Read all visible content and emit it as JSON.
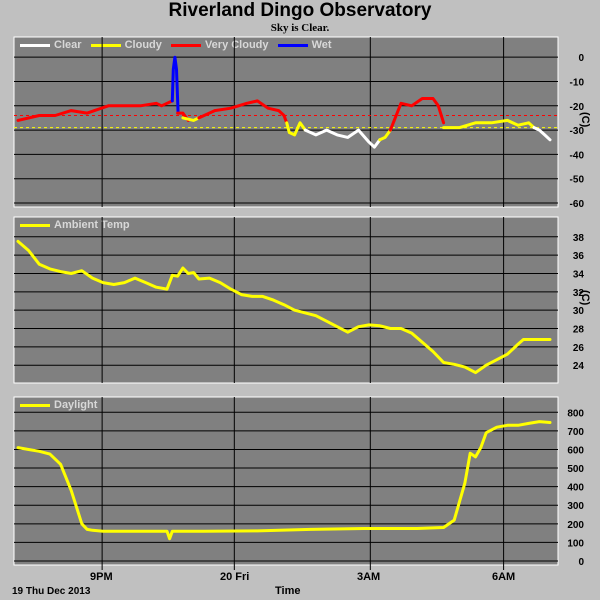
{
  "title": "Riverland Dingo Observatory",
  "subtitle": "Sky is Clear.",
  "date_label": "19 Thu Dec 2013",
  "xaxis_label": "Time",
  "xticks": [
    "9PM",
    "20 Fri",
    "3AM",
    "6AM"
  ],
  "colors": {
    "background": "#c0c0c0",
    "panel": "#808080",
    "clear": "#ffffff",
    "cloudy": "#ffff00",
    "very_cloudy": "#ff0000",
    "wet": "#0000ff",
    "grid": "#000000"
  },
  "chart_data": [
    {
      "type": "line",
      "name": "cloud",
      "legend": [
        "Clear",
        "Cloudy",
        "Very Cloudy",
        "Wet"
      ],
      "unit": "(C)",
      "ylim": [
        -60,
        5
      ],
      "yticks": [
        "0",
        "-10",
        "-20",
        "-30",
        "-40",
        "-50",
        "-60"
      ],
      "xlim": [
        0,
        1
      ],
      "threshold_lines": [
        -24,
        -29
      ],
      "series": [
        {
          "name": "Very Cloudy",
          "color": "very_cloudy",
          "x": [
            0.0,
            0.04,
            0.07,
            0.1,
            0.13,
            0.17,
            0.2,
            0.23,
            0.26,
            0.27,
            0.28,
            0.29
          ],
          "y": [
            -26,
            -24,
            -24,
            -22,
            -23,
            -20,
            -20,
            -20,
            -19,
            -20,
            -19,
            -18
          ]
        },
        {
          "name": "Wet",
          "color": "wet",
          "x": [
            0.29,
            0.292,
            0.295,
            0.298,
            0.301
          ],
          "y": [
            -18,
            -5,
            0,
            -5,
            -23
          ]
        },
        {
          "name": "Very Cloudy",
          "color": "very_cloudy",
          "x": [
            0.3,
            0.31,
            0.32
          ],
          "y": [
            -23,
            -23,
            -26
          ]
        },
        {
          "name": "Cloudy",
          "color": "cloudy",
          "x": [
            0.31,
            0.33,
            0.34
          ],
          "y": [
            -25,
            -26,
            -25
          ]
        },
        {
          "name": "Very Cloudy",
          "color": "very_cloudy",
          "x": [
            0.34,
            0.37,
            0.4,
            0.43,
            0.45,
            0.47,
            0.49,
            0.5,
            0.505
          ],
          "y": [
            -25,
            -22,
            -21,
            -19,
            -18,
            -21,
            -22,
            -24,
            -27
          ]
        },
        {
          "name": "Cloudy",
          "color": "cloudy",
          "x": [
            0.505,
            0.51,
            0.52,
            0.53,
            0.54
          ],
          "y": [
            -27,
            -31,
            -32,
            -27,
            -30
          ]
        },
        {
          "name": "Clear",
          "color": "clear",
          "x": [
            0.54,
            0.56,
            0.58,
            0.6,
            0.62,
            0.64,
            0.66,
            0.67,
            0.68
          ],
          "y": [
            -30,
            -32,
            -30,
            -32,
            -33,
            -30,
            -35,
            -37,
            -34
          ]
        },
        {
          "name": "Cloudy",
          "color": "cloudy",
          "x": [
            0.68,
            0.69,
            0.7
          ],
          "y": [
            -34,
            -33,
            -30
          ]
        },
        {
          "name": "Very Cloudy",
          "color": "very_cloudy",
          "x": [
            0.7,
            0.72,
            0.74,
            0.76,
            0.78,
            0.79,
            0.8
          ],
          "y": [
            -30,
            -19,
            -20,
            -17,
            -17,
            -20,
            -27
          ]
        },
        {
          "name": "Cloudy",
          "color": "cloudy",
          "x": [
            0.8,
            0.83,
            0.86,
            0.89,
            0.92,
            0.94,
            0.96,
            0.97
          ],
          "y": [
            -29,
            -29,
            -27,
            -27,
            -26,
            -28,
            -27,
            -29
          ]
        },
        {
          "name": "Clear",
          "color": "clear",
          "x": [
            0.97,
            0.98,
            0.99,
            1.0
          ],
          "y": [
            -29,
            -30,
            -32,
            -34
          ]
        }
      ]
    },
    {
      "type": "line",
      "name": "ambient",
      "legend": [
        "Ambient Temp"
      ],
      "unit": "(C)",
      "ylim": [
        22.5,
        39.5
      ],
      "yticks": [
        "38",
        "36",
        "34",
        "32",
        "30",
        "28",
        "26",
        "24"
      ],
      "xlim": [
        0,
        1
      ],
      "series": [
        {
          "name": "Ambient Temp",
          "color": "cloudy",
          "x": [
            0.0,
            0.02,
            0.04,
            0.06,
            0.08,
            0.1,
            0.12,
            0.14,
            0.16,
            0.18,
            0.2,
            0.22,
            0.24,
            0.26,
            0.28,
            0.29,
            0.3,
            0.31,
            0.32,
            0.33,
            0.34,
            0.36,
            0.38,
            0.4,
            0.42,
            0.44,
            0.46,
            0.48,
            0.5,
            0.52,
            0.54,
            0.56,
            0.58,
            0.6,
            0.62,
            0.64,
            0.66,
            0.68,
            0.7,
            0.72,
            0.74,
            0.76,
            0.78,
            0.8,
            0.82,
            0.84,
            0.86,
            0.88,
            0.9,
            0.92,
            0.94,
            0.95,
            0.96,
            0.98,
            1.0
          ],
          "y": [
            37.5,
            36.5,
            35.0,
            34.5,
            34.2,
            34.0,
            34.3,
            33.5,
            33.0,
            32.8,
            33.0,
            33.5,
            33.0,
            32.5,
            32.3,
            33.8,
            33.7,
            34.6,
            34.0,
            34.1,
            33.4,
            33.5,
            33.0,
            32.3,
            31.7,
            31.5,
            31.5,
            31.1,
            30.6,
            30.0,
            29.7,
            29.4,
            28.8,
            28.2,
            27.6,
            28.2,
            28.4,
            28.3,
            28.0,
            28.0,
            27.5,
            26.5,
            25.5,
            24.3,
            24.1,
            23.8,
            23.2,
            24.0,
            24.6,
            25.2,
            26.3,
            26.8,
            26.8,
            26.8,
            26.8
          ]
        }
      ]
    },
    {
      "type": "line",
      "name": "daylight",
      "legend": [
        "Daylight"
      ],
      "unit": "",
      "ylim": [
        0,
        850
      ],
      "yticks": [
        "800",
        "700",
        "600",
        "500",
        "400",
        "300",
        "200",
        "100",
        "0"
      ],
      "xlim": [
        0,
        1
      ],
      "series": [
        {
          "name": "Daylight",
          "color": "cloudy",
          "x": [
            0.0,
            0.02,
            0.04,
            0.06,
            0.08,
            0.1,
            0.12,
            0.13,
            0.14,
            0.16,
            0.2,
            0.25,
            0.28,
            0.285,
            0.29,
            0.35,
            0.45,
            0.55,
            0.65,
            0.75,
            0.8,
            0.82,
            0.84,
            0.85,
            0.86,
            0.87,
            0.88,
            0.9,
            0.92,
            0.94,
            0.96,
            0.98,
            1.0
          ],
          "y": [
            610,
            600,
            590,
            575,
            520,
            380,
            200,
            170,
            165,
            160,
            160,
            160,
            160,
            120,
            160,
            160,
            162,
            170,
            175,
            175,
            180,
            220,
            420,
            580,
            560,
            610,
            690,
            720,
            730,
            730,
            740,
            750,
            745
          ]
        }
      ]
    }
  ]
}
